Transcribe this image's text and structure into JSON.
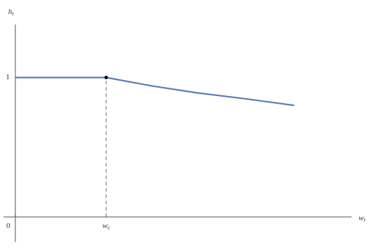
{
  "chart_data": {
    "type": "line",
    "x_label": "wt",
    "y_label": "ht",
    "x": [
      0,
      1,
      1.5,
      2,
      2.5,
      3.07
    ],
    "series": [
      {
        "color": "#5a7db4",
        "values": [
          1,
          1,
          0.94,
          0.89,
          0.85,
          0.8
        ]
      }
    ],
    "xlim": [
      -0.13,
      3.7
    ],
    "ylim": [
      -0.18,
      1.38
    ],
    "xticks": [
      0,
      {
        "value": 1,
        "label": "wc"
      }
    ],
    "yticks": [
      1
    ]
  }
}
